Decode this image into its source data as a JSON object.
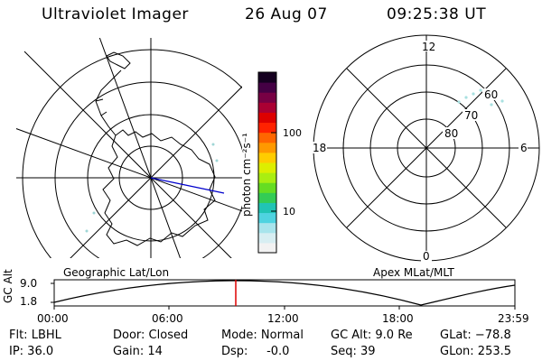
{
  "header": {
    "title": "Ultraviolet Imager",
    "date": "26 Aug 07",
    "time": "09:25:38 UT"
  },
  "maps": {
    "left_label": "Geographic Lat/Lon",
    "right_label": "Apex MLat/MLT"
  },
  "polar": {
    "mlt_top": "12",
    "mlt_left": "18",
    "mlt_right": "6",
    "mlt_bottom": "0",
    "lat_60": "60",
    "lat_70": "70",
    "lat_80": "80"
  },
  "colorbar": {
    "unit_label": "photon cm⁻²s⁻¹",
    "tick_100": "100",
    "tick_10": "10",
    "scale": "log",
    "colors": [
      "#f2f2f2",
      "#d7eef2",
      "#a8e4ec",
      "#4fd3e0",
      "#21c4b4",
      "#33cc55",
      "#66dd22",
      "#aaee11",
      "#ddee00",
      "#ffcc00",
      "#ff9900",
      "#ff6600",
      "#ff2200",
      "#dd0000",
      "#aa0033",
      "#770044",
      "#440044",
      "#150020"
    ]
  },
  "altitude_plot": {
    "y_axis_label": "GC Alt",
    "y_top": "9.0",
    "y_bottom": "1.8",
    "x_ticks": [
      "00:00",
      "06:00",
      "12:00",
      "18:00",
      "23:59"
    ],
    "current_marker_color": "#dd0000"
  },
  "info": {
    "filter": "Flt: LBHL",
    "ip": "IP: 36.0",
    "door": "Door: Closed",
    "gain": "Gain: 14",
    "mode": "Mode: Normal",
    "dsp": "Dsp:     -0.0",
    "gc_alt": "GC Alt: 9.0 Re",
    "seq": "Seq: 39",
    "glat": "GLat: −78.8",
    "glon": "GLon: 253.5"
  }
}
